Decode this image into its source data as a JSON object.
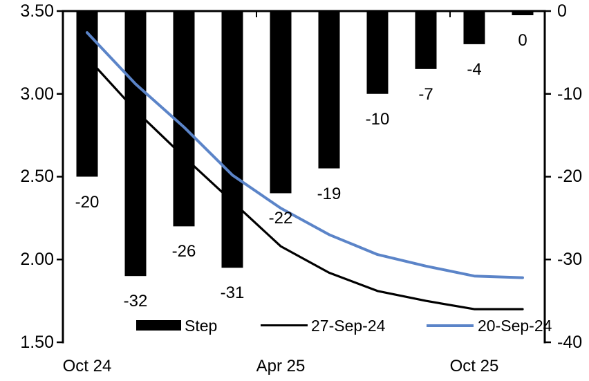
{
  "chart_data": {
    "type": "combo-bar-line",
    "title": "",
    "x_ticks": [
      "Oct 24",
      "Apr 25",
      "Oct 25"
    ],
    "left_axis": {
      "tick_labels": [
        "3.50",
        "3.00",
        "2.50",
        "2.00",
        "1.50"
      ],
      "max": 3.5,
      "min": 1.5
    },
    "right_axis": {
      "tick_labels": [
        "0",
        "-10",
        "-20",
        "-30",
        "-40"
      ],
      "max": 0,
      "min": -40
    },
    "bars": {
      "name": "Step",
      "axis": "right",
      "color": "#000000",
      "values": [
        -20,
        -32,
        -26,
        -31,
        -22,
        -19,
        -10,
        -7,
        -4,
        0
      ],
      "labels": [
        "-20",
        "-32",
        "-26",
        "-31",
        "-22",
        "-19",
        "-10",
        "-7",
        "-4",
        "0"
      ]
    },
    "series": [
      {
        "name": "27-Sep-24",
        "axis": "left",
        "color": "#000000",
        "values": [
          3.22,
          2.9,
          2.62,
          2.35,
          2.08,
          1.92,
          1.81,
          1.75,
          1.7,
          1.7
        ]
      },
      {
        "name": "20-Sep-24",
        "axis": "left",
        "color": "#5B84C8",
        "values": [
          3.37,
          3.06,
          2.8,
          2.51,
          2.31,
          2.15,
          2.03,
          1.96,
          1.9,
          1.89
        ]
      }
    ],
    "legend_position": "bottom-inside",
    "grid": "off"
  }
}
